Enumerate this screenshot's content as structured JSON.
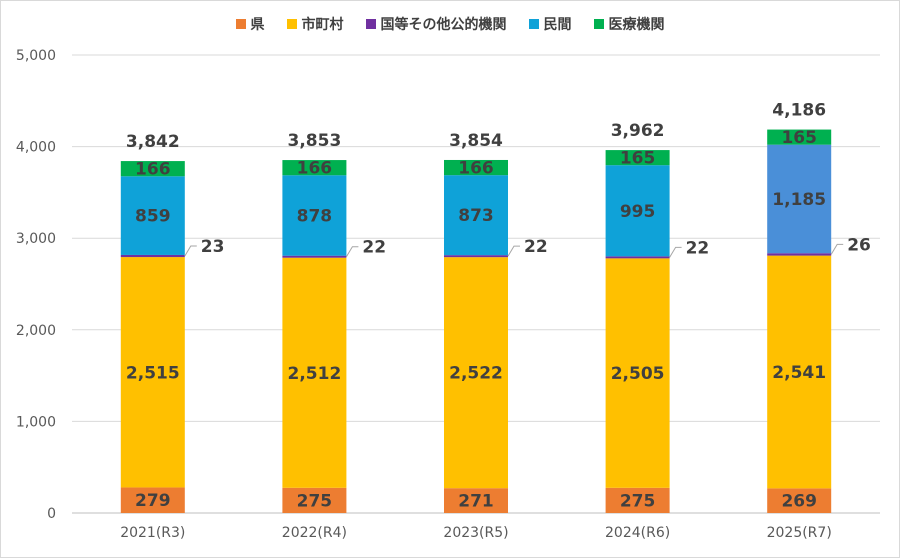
{
  "chart_data": {
    "type": "bar",
    "stacked": true,
    "title": "",
    "xlabel": "",
    "ylabel": "",
    "ylim": [
      0,
      5000
    ],
    "yticks": [
      "0",
      "1,000",
      "2,000",
      "3,000",
      "4,000",
      "5,000"
    ],
    "ytick_values": [
      0,
      1000,
      2000,
      3000,
      4000,
      5000
    ],
    "legend_position": "top",
    "categories": [
      "2021(R3)",
      "2022(R4)",
      "2023(R5)",
      "2024(R6)",
      "2025(R7)"
    ],
    "series": [
      {
        "name": "県",
        "color": "#ed7d31",
        "values": [
          279,
          275,
          271,
          275,
          269
        ],
        "labels": [
          "279",
          "275",
          "271",
          "275",
          "269"
        ]
      },
      {
        "name": "市町村",
        "color": "#ffc000",
        "values": [
          2515,
          2512,
          2522,
          2505,
          2541
        ],
        "labels": [
          "2,515",
          "2,512",
          "2,522",
          "2,505",
          "2,541"
        ]
      },
      {
        "name": "国等その他公的機関",
        "color": "#7030a0",
        "values": [
          23,
          22,
          22,
          22,
          26
        ],
        "labels": [
          "23",
          "22",
          "22",
          "22",
          "26"
        ]
      },
      {
        "name": "民間",
        "color": "#0fa2d8",
        "values": [
          859,
          878,
          873,
          995,
          1185
        ],
        "labels": [
          "859",
          "878",
          "873",
          "995",
          "1,185"
        ],
        "point_colors": [
          "#0fa2d8",
          "#0fa2d8",
          "#0fa2d8",
          "#0fa2d8",
          "#4a8fd8"
        ]
      },
      {
        "name": "医療機関",
        "color": "#00b050",
        "values": [
          166,
          166,
          166,
          165,
          165
        ],
        "labels": [
          "166",
          "166",
          "166",
          "165",
          "165"
        ]
      }
    ],
    "totals": [
      3842,
      3853,
      3854,
      3962,
      4186
    ],
    "total_labels": [
      "3,842",
      "3,853",
      "3,854",
      "3,962",
      "4,186"
    ]
  }
}
